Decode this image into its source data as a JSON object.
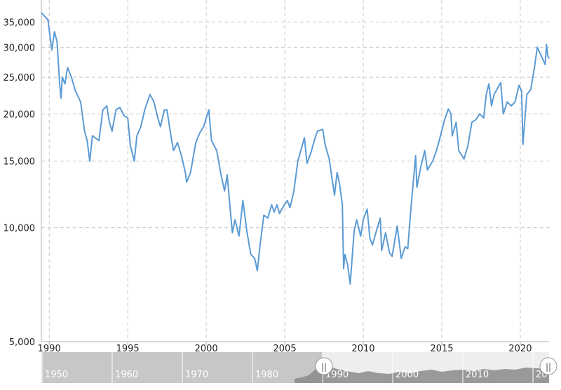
{
  "chart_data": {
    "type": "line",
    "title": "",
    "xlabel": "",
    "ylabel": "",
    "y_scale": "log",
    "ylim": [
      5000,
      40000
    ],
    "xlim": [
      "1989-07-01",
      "2021-11-01"
    ],
    "grid": true,
    "y_ticks": [
      {
        "value": 5000,
        "label": "5,000"
      },
      {
        "value": 10000,
        "label": "10,000"
      },
      {
        "value": 15000,
        "label": "15,000"
      },
      {
        "value": 20000,
        "label": "20,000"
      },
      {
        "value": 25000,
        "label": "25,000"
      },
      {
        "value": 30000,
        "label": "30,000"
      },
      {
        "value": 35000,
        "label": "35,000"
      }
    ],
    "x_ticks": [
      {
        "value": "1990-01-01",
        "label": "1990"
      },
      {
        "value": "1995-01-01",
        "label": "1995"
      },
      {
        "value": "2000-01-01",
        "label": "2000"
      },
      {
        "value": "2005-01-01",
        "label": "2005"
      },
      {
        "value": "2010-01-01",
        "label": "2010"
      },
      {
        "value": "2015-01-01",
        "label": "2015"
      },
      {
        "value": "2020-01-01",
        "label": "2020"
      }
    ],
    "series": [
      {
        "color": "#5b9bd5",
        "points": [
          [
            "1989-07-01",
            37000
          ],
          [
            "1989-12-01",
            35500
          ],
          [
            "1990-03-01",
            29500
          ],
          [
            "1990-05-01",
            33000
          ],
          [
            "1990-07-01",
            31000
          ],
          [
            "1990-09-01",
            24000
          ],
          [
            "1990-10-01",
            22000
          ],
          [
            "1990-11-01",
            25000
          ],
          [
            "1991-01-01",
            24000
          ],
          [
            "1991-03-01",
            26500
          ],
          [
            "1991-06-01",
            25000
          ],
          [
            "1991-09-01",
            23000
          ],
          [
            "1992-01-01",
            21500
          ],
          [
            "1992-04-01",
            18000
          ],
          [
            "1992-06-01",
            17000
          ],
          [
            "1992-08-01",
            15000
          ],
          [
            "1992-10-01",
            17500
          ],
          [
            "1993-03-01",
            17000
          ],
          [
            "1993-06-01",
            20500
          ],
          [
            "1993-09-01",
            21000
          ],
          [
            "1993-11-01",
            19000
          ],
          [
            "1994-01-01",
            18000
          ],
          [
            "1994-04-01",
            20500
          ],
          [
            "1994-07-01",
            20800
          ],
          [
            "1994-10-01",
            19800
          ],
          [
            "1995-01-01",
            19500
          ],
          [
            "1995-03-01",
            16500
          ],
          [
            "1995-06-01",
            15000
          ],
          [
            "1995-08-01",
            17500
          ],
          [
            "1995-11-01",
            18500
          ],
          [
            "1996-02-01",
            20500
          ],
          [
            "1996-06-01",
            22500
          ],
          [
            "1996-09-01",
            21500
          ],
          [
            "1996-12-01",
            19500
          ],
          [
            "1997-02-01",
            18500
          ],
          [
            "1997-05-01",
            20500
          ],
          [
            "1997-07-01",
            20500
          ],
          [
            "1997-10-01",
            17500
          ],
          [
            "1997-12-01",
            16000
          ],
          [
            "1998-03-01",
            16800
          ],
          [
            "1998-06-01",
            15500
          ],
          [
            "1998-09-01",
            14000
          ],
          [
            "1998-10-01",
            13200
          ],
          [
            "1999-01-01",
            14000
          ],
          [
            "1999-05-01",
            16800
          ],
          [
            "1999-08-01",
            17800
          ],
          [
            "1999-11-01",
            18500
          ],
          [
            "2000-03-01",
            20500
          ],
          [
            "2000-05-01",
            17000
          ],
          [
            "2000-09-01",
            16000
          ],
          [
            "2000-12-01",
            14000
          ],
          [
            "2001-03-01",
            12500
          ],
          [
            "2001-05-01",
            13800
          ],
          [
            "2001-07-01",
            11500
          ],
          [
            "2001-09-01",
            9700
          ],
          [
            "2001-11-01",
            10500
          ],
          [
            "2002-02-01",
            9500
          ],
          [
            "2002-05-01",
            11800
          ],
          [
            "2002-08-01",
            9800
          ],
          [
            "2002-11-01",
            8500
          ],
          [
            "2003-02-01",
            8300
          ],
          [
            "2003-04-01",
            7700
          ],
          [
            "2003-06-01",
            8900
          ],
          [
            "2003-09-01",
            10800
          ],
          [
            "2003-12-01",
            10600
          ],
          [
            "2004-03-01",
            11500
          ],
          [
            "2004-05-01",
            11000
          ],
          [
            "2004-07-01",
            11500
          ],
          [
            "2004-09-01",
            10900
          ],
          [
            "2004-12-01",
            11400
          ],
          [
            "2005-03-01",
            11800
          ],
          [
            "2005-05-01",
            11300
          ],
          [
            "2005-08-01",
            12500
          ],
          [
            "2005-11-01",
            15000
          ],
          [
            "2006-04-01",
            17300
          ],
          [
            "2006-06-01",
            14800
          ],
          [
            "2006-09-01",
            15800
          ],
          [
            "2006-12-01",
            17200
          ],
          [
            "2007-02-01",
            18000
          ],
          [
            "2007-06-01",
            18200
          ],
          [
            "2007-08-01",
            16500
          ],
          [
            "2007-11-01",
            15200
          ],
          [
            "2008-01-01",
            13600
          ],
          [
            "2008-03-01",
            12200
          ],
          [
            "2008-05-01",
            14000
          ],
          [
            "2008-07-01",
            13000
          ],
          [
            "2008-09-01",
            11500
          ],
          [
            "2008-10-01",
            7800
          ],
          [
            "2008-11-01",
            8500
          ],
          [
            "2009-01-01",
            8000
          ],
          [
            "2009-03-01",
            7100
          ],
          [
            "2009-06-01",
            9800
          ],
          [
            "2009-08-01",
            10500
          ],
          [
            "2009-11-01",
            9500
          ],
          [
            "2010-01-01",
            10500
          ],
          [
            "2010-04-01",
            11200
          ],
          [
            "2010-06-01",
            9400
          ],
          [
            "2010-08-01",
            9000
          ],
          [
            "2010-11-01",
            9800
          ],
          [
            "2011-02-01",
            10600
          ],
          [
            "2011-03-01",
            8700
          ],
          [
            "2011-06-01",
            9700
          ],
          [
            "2011-09-01",
            8600
          ],
          [
            "2011-11-01",
            8400
          ],
          [
            "2012-03-01",
            10100
          ],
          [
            "2012-06-01",
            8300
          ],
          [
            "2012-09-01",
            8900
          ],
          [
            "2012-11-01",
            8800
          ],
          [
            "2013-01-01",
            10800
          ],
          [
            "2013-05-01",
            15500
          ],
          [
            "2013-06-01",
            12800
          ],
          [
            "2013-09-01",
            14500
          ],
          [
            "2013-12-01",
            16000
          ],
          [
            "2014-02-01",
            14200
          ],
          [
            "2014-06-01",
            15000
          ],
          [
            "2014-09-01",
            16000
          ],
          [
            "2014-12-01",
            17500
          ],
          [
            "2015-03-01",
            19200
          ],
          [
            "2015-06-01",
            20600
          ],
          [
            "2015-08-01",
            20000
          ],
          [
            "2015-09-01",
            17500
          ],
          [
            "2015-12-01",
            19000
          ],
          [
            "2016-02-01",
            16000
          ],
          [
            "2016-06-01",
            15200
          ],
          [
            "2016-09-01",
            16500
          ],
          [
            "2016-12-01",
            19000
          ],
          [
            "2017-03-01",
            19300
          ],
          [
            "2017-06-01",
            20000
          ],
          [
            "2017-09-01",
            19500
          ],
          [
            "2017-11-01",
            22500
          ],
          [
            "2018-01-01",
            24000
          ],
          [
            "2018-03-01",
            21000
          ],
          [
            "2018-05-01",
            22500
          ],
          [
            "2018-10-01",
            24200
          ],
          [
            "2018-12-01",
            20000
          ],
          [
            "2019-03-01",
            21500
          ],
          [
            "2019-06-01",
            21000
          ],
          [
            "2019-09-01",
            21500
          ],
          [
            "2019-12-01",
            23800
          ],
          [
            "2020-02-01",
            23000
          ],
          [
            "2020-03-01",
            16600
          ],
          [
            "2020-06-01",
            22500
          ],
          [
            "2020-09-01",
            23200
          ],
          [
            "2020-12-01",
            26800
          ],
          [
            "2021-02-01",
            30000
          ],
          [
            "2021-05-01",
            28500
          ],
          [
            "2021-08-01",
            27000
          ],
          [
            "2021-09-01",
            30500
          ],
          [
            "2021-10-01",
            28500
          ],
          [
            "2021-11-01",
            28000
          ]
        ]
      }
    ]
  },
  "navigator": {
    "decades": [
      "1950",
      "1960",
      "1970",
      "1980",
      "1990",
      "2000",
      "2010",
      "20"
    ],
    "handle_glyph": "||"
  }
}
